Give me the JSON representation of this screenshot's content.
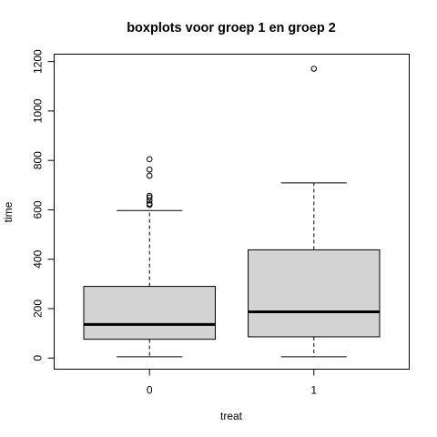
{
  "chart_data": {
    "type": "boxplot",
    "title": "boxplots voor groep 1 en groep 2",
    "xlabel": "treat",
    "ylabel": "time",
    "categories": [
      "0",
      "1"
    ],
    "ylim": [
      -45,
      1230
    ],
    "y_ticks": [
      0,
      200,
      400,
      600,
      800,
      1000,
      1200
    ],
    "grid": false,
    "box_fill": "#d3d3d3",
    "line_color": "#000000",
    "series": [
      {
        "category": "0",
        "whisker_low": 5,
        "q1": 76,
        "median": 136,
        "q3": 290,
        "whisker_high": 597,
        "outliers": [
          620,
          625,
          638,
          650,
          657,
          738,
          763,
          805
        ]
      },
      {
        "category": "1",
        "whisker_low": 5,
        "q1": 86,
        "median": 187,
        "q3": 438,
        "whisker_high": 709,
        "outliers": [
          1171
        ]
      }
    ]
  }
}
